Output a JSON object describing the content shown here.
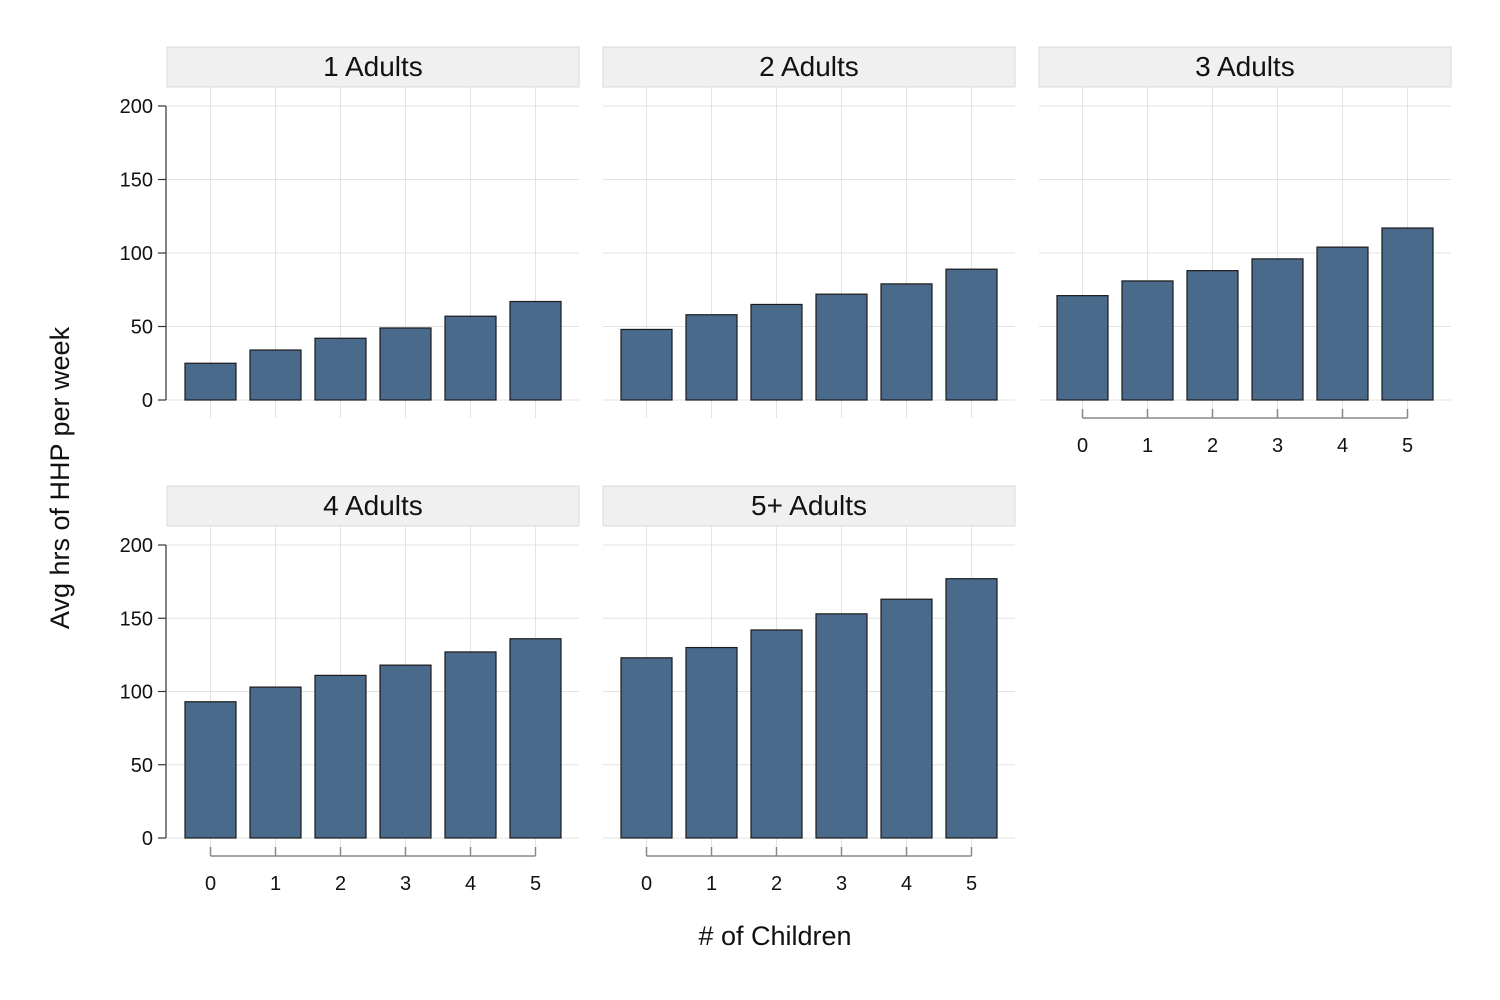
{
  "chart_data": {
    "type": "bar",
    "ylabel": "Avg hrs of HHP per week",
    "xlabel": "# of Children",
    "ylim": [
      0,
      200
    ],
    "y_ticks": [
      0,
      50,
      100,
      150,
      200
    ],
    "categories": [
      "0",
      "1",
      "2",
      "3",
      "4",
      "5"
    ],
    "grid": true,
    "colors": {
      "bar": "#4a6a8b",
      "bar_edge": "#1a1a1a",
      "strip": "#eff0ef",
      "grid": "#e3e3e3"
    },
    "panels": [
      {
        "title": "1 Adults",
        "values": [
          25,
          34,
          42,
          49,
          57,
          67
        ]
      },
      {
        "title": "2 Adults",
        "values": [
          48,
          58,
          65,
          72,
          79,
          89
        ]
      },
      {
        "title": "3 Adults",
        "values": [
          71,
          81,
          88,
          96,
          104,
          117
        ]
      },
      {
        "title": "4 Adults",
        "values": [
          93,
          103,
          111,
          118,
          127,
          136
        ]
      },
      {
        "title": "5+ Adults",
        "values": [
          123,
          130,
          142,
          153,
          163,
          177
        ]
      }
    ]
  }
}
